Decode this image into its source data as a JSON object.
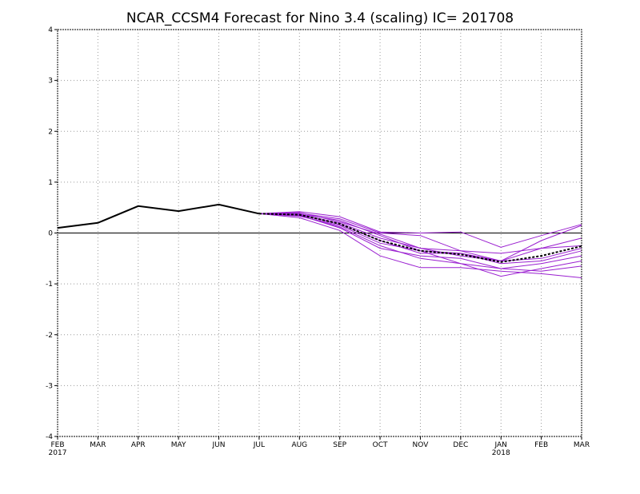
{
  "chart_data": {
    "type": "line",
    "title": "NCAR_CCSM4 Forecast for Nino 3.4 (scaling)  IC= 201708",
    "xlabel": "",
    "ylabel": "",
    "categories": [
      "FEB",
      "MAR",
      "APR",
      "MAY",
      "JUN",
      "JUL",
      "AUG",
      "SEP",
      "OCT",
      "NOV",
      "DEC",
      "JAN",
      "FEB",
      "MAR"
    ],
    "year_labels": [
      {
        "index": 0,
        "label": "2017"
      },
      {
        "index": 11,
        "label": "2018"
      }
    ],
    "ylim": [
      -4,
      4
    ],
    "yticks": [
      -4,
      -3,
      -2,
      -1,
      0,
      1,
      2,
      3,
      4
    ],
    "grid": true,
    "zero_line": true,
    "colors": {
      "observed": "#000000",
      "members": "#9a1fd0",
      "ensemble_mean": "#000000",
      "grid": "#9a9a9a"
    },
    "observed": {
      "x": [
        0,
        1,
        2,
        3,
        4,
        5
      ],
      "values": [
        0.1,
        0.2,
        0.53,
        0.43,
        0.56,
        0.38
      ]
    },
    "members": [
      {
        "x": [
          5,
          6,
          7,
          8,
          9,
          10,
          11,
          12,
          13
        ],
        "values": [
          0.38,
          0.42,
          0.32,
          0.02,
          0.0,
          0.02,
          -0.28,
          -0.05,
          0.17
        ]
      },
      {
        "x": [
          5,
          6,
          7,
          8,
          9,
          10,
          11,
          12,
          13
        ],
        "values": [
          0.38,
          0.36,
          0.2,
          -0.1,
          -0.3,
          -0.35,
          -0.4,
          -0.3,
          -0.1
        ]
      },
      {
        "x": [
          5,
          6,
          7,
          8,
          9,
          10,
          11,
          12,
          13
        ],
        "values": [
          0.38,
          0.4,
          0.22,
          -0.02,
          -0.3,
          -0.45,
          -0.55,
          -0.3,
          -0.25
        ]
      },
      {
        "x": [
          5,
          6,
          7,
          8,
          9,
          10,
          11,
          12,
          13
        ],
        "values": [
          0.38,
          0.33,
          0.15,
          -0.2,
          -0.35,
          -0.4,
          -0.6,
          -0.55,
          -0.35
        ]
      },
      {
        "x": [
          5,
          6,
          7,
          8,
          9,
          10,
          11,
          12,
          13
        ],
        "values": [
          0.38,
          0.35,
          0.1,
          -0.3,
          -0.45,
          -0.5,
          -0.7,
          -0.6,
          -0.45
        ]
      },
      {
        "x": [
          5,
          6,
          7,
          8,
          9,
          10,
          11,
          12,
          13
        ],
        "values": [
          0.38,
          0.3,
          0.05,
          -0.45,
          -0.68,
          -0.68,
          -0.75,
          -0.8,
          -0.88
        ]
      },
      {
        "x": [
          5,
          6,
          7,
          8,
          9,
          10,
          11,
          12,
          13
        ],
        "values": [
          0.38,
          0.34,
          0.12,
          -0.25,
          -0.5,
          -0.6,
          -0.85,
          -0.7,
          -0.55
        ]
      },
      {
        "x": [
          5,
          6,
          7,
          8,
          9,
          10,
          11,
          12,
          13
        ],
        "values": [
          0.38,
          0.37,
          0.25,
          -0.05,
          -0.35,
          -0.6,
          -0.7,
          -0.75,
          -0.65
        ]
      },
      {
        "x": [
          5,
          6,
          7,
          8,
          9,
          10,
          11,
          12,
          13
        ],
        "values": [
          0.38,
          0.36,
          0.17,
          -0.15,
          -0.4,
          -0.4,
          -0.55,
          -0.5,
          -0.3
        ]
      },
      {
        "x": [
          5,
          6,
          7,
          8,
          9,
          10,
          11,
          12,
          13
        ],
        "values": [
          0.38,
          0.39,
          0.28,
          0.0,
          -0.05,
          -0.35,
          -0.55,
          -0.15,
          0.15
        ]
      }
    ],
    "ensemble_mean": {
      "x": [
        5,
        6,
        7,
        8,
        9,
        10,
        11,
        12,
        13
      ],
      "values": [
        0.38,
        0.36,
        0.18,
        -0.15,
        -0.35,
        -0.42,
        -0.57,
        -0.45,
        -0.26
      ]
    }
  }
}
